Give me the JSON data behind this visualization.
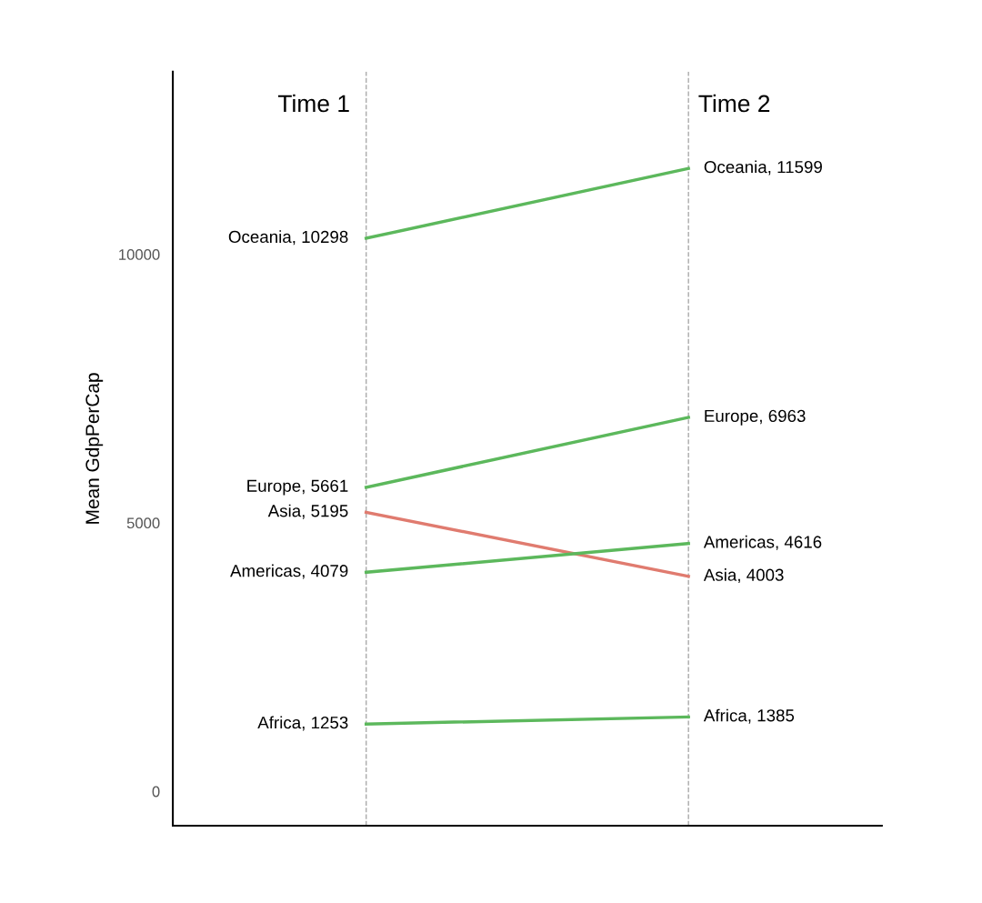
{
  "chart_data": {
    "type": "line",
    "ylabel": "Mean GdpPerCap",
    "x": [
      1,
      2
    ],
    "xlim": [
      0.4,
      2.6
    ],
    "ylim": [
      -640,
      13400
    ],
    "yticks": [
      0,
      5000,
      10000
    ],
    "tick_labels": "y",
    "grid": false,
    "marker": "none",
    "line_style": "solid",
    "series": [
      {
        "color": "#5cb85c",
        "values": [
          10298,
          11599
        ],
        "value_labels": [
          "Oceania, 10298",
          "Oceania, 11599"
        ]
      },
      {
        "color": "#5cb85c",
        "values": [
          5661,
          6963
        ],
        "value_labels": [
          "Europe, 5661",
          "Europe, 6963"
        ]
      },
      {
        "color": "#e07b6f",
        "values": [
          5195,
          4003
        ],
        "value_labels": [
          "Asia, 5195",
          "Asia, 4003"
        ]
      },
      {
        "color": "#5cb85c",
        "values": [
          4079,
          4616
        ],
        "value_labels": [
          "Americas, 4079",
          "Americas, 4616"
        ]
      },
      {
        "color": "#5cb85c",
        "values": [
          1253,
          1385
        ],
        "value_labels": [
          "Africa, 1253",
          "Africa, 1385"
        ]
      }
    ],
    "ref_lines": [
      {
        "axis": "x",
        "value": 1,
        "label": "Time 1",
        "color": "#aaaaaa",
        "line_style": "dashed"
      },
      {
        "axis": "x",
        "value": 2,
        "label": "Time 2",
        "color": "#aaaaaa",
        "line_style": "dashed"
      }
    ]
  }
}
